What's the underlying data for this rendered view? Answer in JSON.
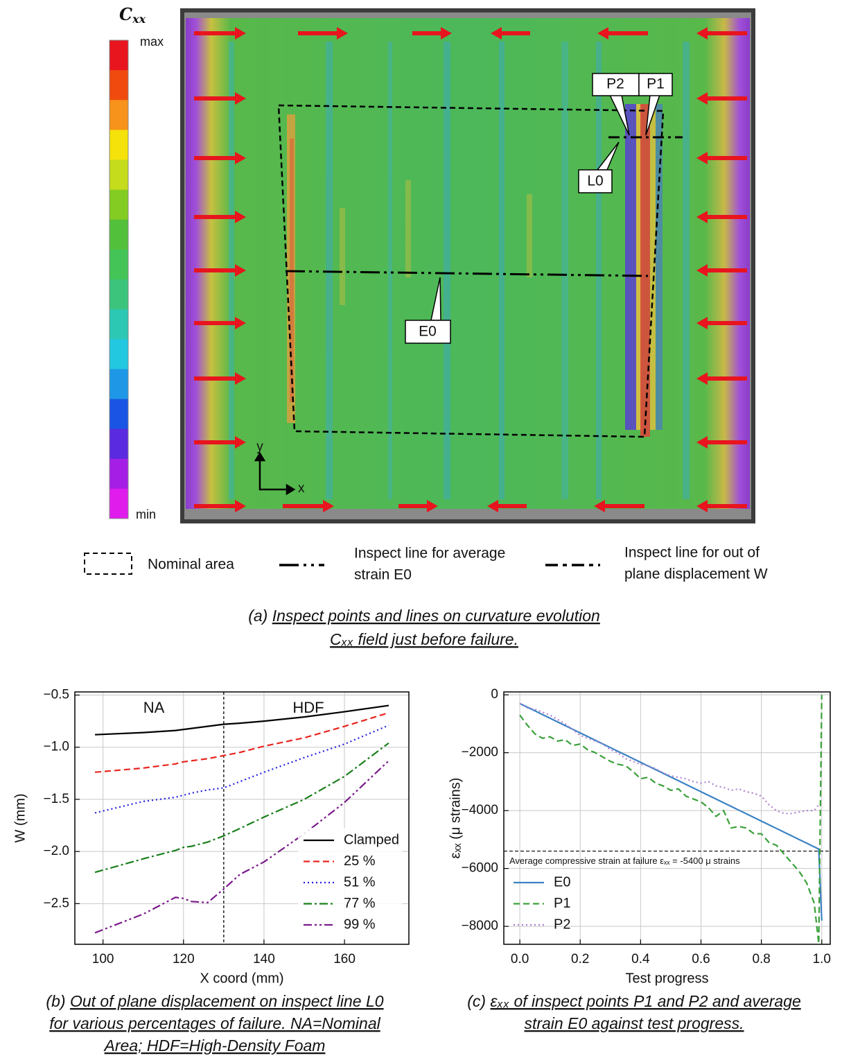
{
  "panel_a": {
    "colorbar_title": "C",
    "colorbar_title_sub": "xx",
    "colorbar_max": "max",
    "colorbar_min": "min",
    "colorbar_colors": [
      "#e8141e",
      "#f04a0e",
      "#f7921a",
      "#f4e20a",
      "#c4dc1c",
      "#84cc22",
      "#52c03a",
      "#44c456",
      "#3cc47c",
      "#2cc8b4",
      "#22c8e0",
      "#1e98e6",
      "#1a54e4",
      "#5a2ae0",
      "#a41ee6",
      "#e01cec"
    ],
    "point_labels": [
      "P2",
      "P1"
    ],
    "line_labels": [
      "L0",
      "E0"
    ],
    "axis_y": "y",
    "axis_x": "x",
    "legend": {
      "nominal": "Nominal area",
      "avg_line": [
        "Inspect line for average",
        "strain E0"
      ],
      "w_line": [
        "Inspect line for out of",
        "plane displacement W"
      ]
    },
    "caption_label": "(a)",
    "caption": [
      "Inspect points and lines on curvature evolution",
      "Cₓₓ field just before failure."
    ]
  },
  "chart_data": [
    {
      "type": "line",
      "caption_label": "(b)",
      "caption": [
        "Out of plane displacement on inspect line L0",
        "for various percentages of failure. NA=Nominal",
        "Area; HDF=High-Density Foam"
      ],
      "xlabel": "X coord (mm)",
      "ylabel": "W (mm)",
      "region_labels": [
        "NA",
        "HDF"
      ],
      "vline": 130,
      "x": [
        98,
        110,
        118,
        120,
        122,
        126,
        130,
        134,
        140,
        150,
        160,
        171
      ],
      "series": [
        {
          "name": "Clamped",
          "color": "#000000",
          "dash": "solid",
          "values": [
            -0.88,
            -0.86,
            -0.84,
            -0.83,
            -0.82,
            -0.8,
            -0.78,
            -0.77,
            -0.75,
            -0.71,
            -0.66,
            -0.6
          ]
        },
        {
          "name": "25 %",
          "color": "#e8251f",
          "dash": "dashed",
          "values": [
            -1.24,
            -1.2,
            -1.16,
            -1.14,
            -1.13,
            -1.11,
            -1.08,
            -1.05,
            -0.99,
            -0.91,
            -0.8,
            -0.67
          ]
        },
        {
          "name": "51 %",
          "color": "#1f1fe0",
          "dash": "dotted",
          "values": [
            -1.63,
            -1.52,
            -1.48,
            -1.46,
            -1.44,
            -1.41,
            -1.39,
            -1.33,
            -1.24,
            -1.1,
            -0.97,
            -0.79
          ]
        },
        {
          "name": "77 %",
          "color": "#1a7f1a",
          "dash": "dashdot",
          "values": [
            -2.2,
            -2.07,
            -1.99,
            -1.96,
            -1.95,
            -1.91,
            -1.85,
            -1.78,
            -1.67,
            -1.5,
            -1.28,
            -0.96
          ]
        },
        {
          "name": "99 %",
          "color": "#7a1a8a",
          "dash": "dashdotdot",
          "values": [
            -2.78,
            -2.6,
            -2.44,
            -2.45,
            -2.48,
            -2.49,
            -2.36,
            -2.22,
            -2.1,
            -1.83,
            -1.53,
            -1.13
          ]
        }
      ],
      "xlim": [
        93,
        176
      ],
      "ylim": [
        -2.89,
        -0.47
      ],
      "xticks": [
        100,
        120,
        140,
        160
      ],
      "yticks": [
        {
          "value": -0.5,
          "label": "−0.5"
        },
        {
          "value": -1.0,
          "label": "−1.0"
        },
        {
          "value": -1.5,
          "label": "−1.5"
        },
        {
          "value": -2.0,
          "label": "−2.0"
        },
        {
          "value": -2.5,
          "label": "−2.5"
        }
      ],
      "grid": true,
      "legend": "lower right"
    },
    {
      "type": "line",
      "caption_label": "(c)",
      "caption": [
        "εₓₓ of inspect points P1 and P2 and average",
        "strain E0 against test progress."
      ],
      "xlabel": "Test progress",
      "ylabel": "εₓₓ (μ strains)",
      "hline": -5400,
      "hline_label": "Average compressive strain at failure εₓₓ = -5400 μ strains",
      "x": [
        0,
        0.025,
        0.05,
        0.075,
        0.1,
        0.125,
        0.15,
        0.175,
        0.2,
        0.225,
        0.25,
        0.275,
        0.3,
        0.325,
        0.35,
        0.375,
        0.4,
        0.425,
        0.45,
        0.475,
        0.5,
        0.525,
        0.55,
        0.575,
        0.6,
        0.625,
        0.65,
        0.675,
        0.7,
        0.725,
        0.75,
        0.775,
        0.8,
        0.825,
        0.85,
        0.875,
        0.9,
        0.925,
        0.95,
        0.975,
        0.99,
        1.0
      ],
      "series": [
        {
          "name": "E0",
          "color": "#3b82c4",
          "dash": "solid",
          "values": [
            -300,
            -427,
            -554,
            -681,
            -808,
            -935,
            -1062,
            -1189,
            -1316,
            -1443,
            -1570,
            -1697,
            -1824,
            -1951,
            -2078,
            -2205,
            -2332,
            -2459,
            -2586,
            -2713,
            -2840,
            -2967,
            -3094,
            -3221,
            -3348,
            -3475,
            -3602,
            -3729,
            -3856,
            -3983,
            -4110,
            -4237,
            -4364,
            -4491,
            -4618,
            -4745,
            -4872,
            -4999,
            -5126,
            -5253,
            -5329,
            -7800
          ]
        },
        {
          "name": "P1",
          "color": "#3aa03a",
          "dash": "dashed",
          "values": [
            -700,
            -1050,
            -1350,
            -1500,
            -1450,
            -1600,
            -1550,
            -1750,
            -1700,
            -1900,
            -2000,
            -2150,
            -2300,
            -2400,
            -2450,
            -2650,
            -2900,
            -2850,
            -3050,
            -3150,
            -3300,
            -3250,
            -3500,
            -3600,
            -3700,
            -3900,
            -4200,
            -4000,
            -4600,
            -4550,
            -4600,
            -4800,
            -4800,
            -5100,
            -5200,
            -5500,
            -5800,
            -6100,
            -6500,
            -7200,
            -8600,
            0
          ]
        },
        {
          "name": "P2",
          "color": "#b07fd0",
          "dash": "dotted",
          "values": [
            -300,
            -450,
            -500,
            -600,
            -700,
            -850,
            -1000,
            -1200,
            -1400,
            -1500,
            -1600,
            -1700,
            -1900,
            -2000,
            -2200,
            -2300,
            -2400,
            -2450,
            -2550,
            -2700,
            -2800,
            -2850,
            -2900,
            -3000,
            -3050,
            -3000,
            -3150,
            -3200,
            -3300,
            -3250,
            -3350,
            -3400,
            -3500,
            -3800,
            -4000,
            -4100,
            -4100,
            -4050,
            -4000,
            -4000,
            -3800,
            null
          ]
        }
      ],
      "xlim": [
        -0.053,
        1.028
      ],
      "ylim": [
        -8620,
        100
      ],
      "xticks": [
        {
          "value": 0,
          "label": "0.0"
        },
        {
          "value": 0.2,
          "label": "0.2"
        },
        {
          "value": 0.4,
          "label": "0.4"
        },
        {
          "value": 0.6,
          "label": "0.6"
        },
        {
          "value": 0.8,
          "label": "0.8"
        },
        {
          "value": 1.0,
          "label": "1.0"
        }
      ],
      "yticks": [
        0,
        {
          "value": -2000,
          "label": "−2000"
        },
        {
          "value": -4000,
          "label": "−4000"
        },
        {
          "value": -6000,
          "label": "−6000"
        },
        {
          "value": -8000,
          "label": "−8000"
        }
      ],
      "grid": true,
      "legend": "lower left"
    }
  ]
}
